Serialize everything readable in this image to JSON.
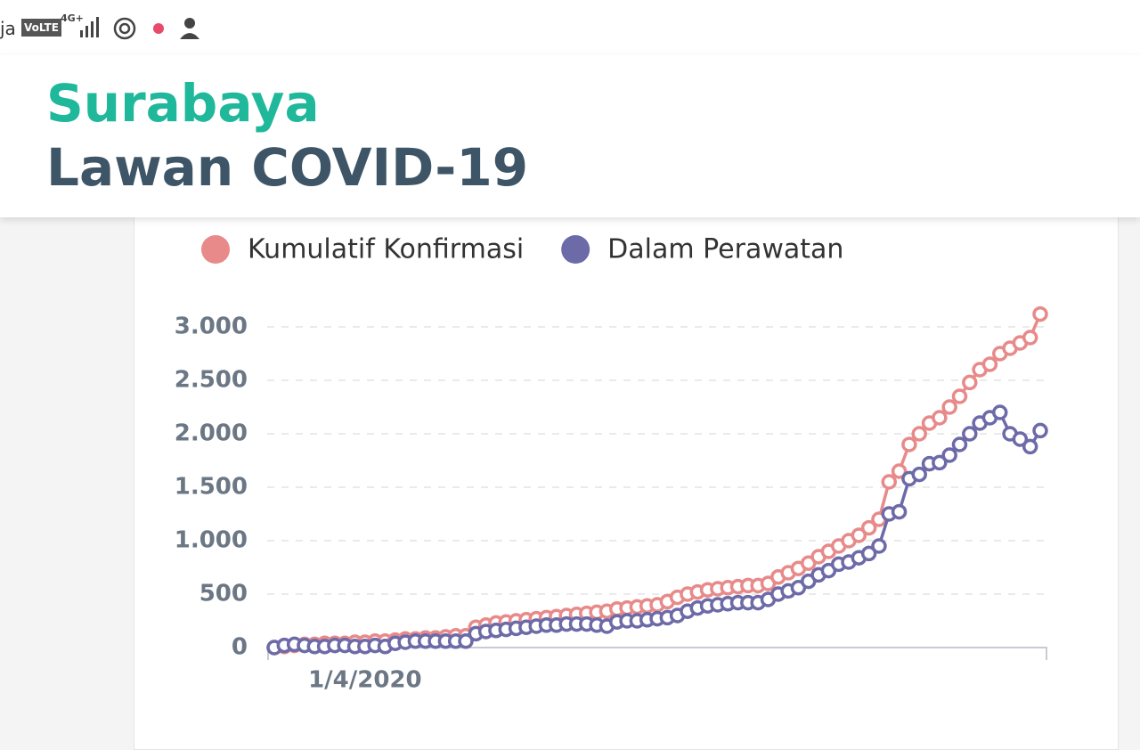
{
  "status_bar": {
    "left_text": "ja",
    "badge": "VoLTE",
    "network": "4G+"
  },
  "header": {
    "title_line1": "Surabaya",
    "title_line2": "Lawan COVID-19"
  },
  "chart_data": {
    "type": "line",
    "categories": [
      null,
      null,
      null,
      null,
      null,
      null,
      null,
      null,
      null,
      "1/4/2020",
      null,
      null,
      null,
      null,
      null,
      null,
      null,
      null,
      null,
      null,
      null,
      null,
      null,
      null,
      null,
      null,
      null,
      null,
      null,
      null,
      null,
      null,
      null,
      null,
      null,
      null,
      null,
      null,
      null,
      null,
      null,
      null,
      null,
      null,
      null,
      null,
      null,
      null,
      null,
      null,
      null,
      null,
      null,
      null,
      null,
      null,
      null,
      null,
      null,
      null,
      null,
      null,
      null,
      null,
      null,
      null,
      null,
      null,
      null,
      null,
      null,
      null,
      null,
      null,
      null,
      null,
      null
    ],
    "series": [
      {
        "name": "Kumulatif Konfirmasi",
        "color": "#e88a8a",
        "values": [
          0,
          10,
          20,
          30,
          30,
          40,
          40,
          40,
          50,
          50,
          60,
          60,
          70,
          80,
          80,
          90,
          90,
          100,
          110,
          110,
          190,
          210,
          230,
          240,
          250,
          260,
          270,
          280,
          290,
          300,
          310,
          320,
          330,
          340,
          360,
          370,
          380,
          390,
          400,
          430,
          470,
          500,
          520,
          540,
          550,
          560,
          570,
          580,
          580,
          600,
          660,
          700,
          740,
          790,
          850,
          900,
          950,
          1000,
          1050,
          1120,
          1200,
          1550,
          1650,
          1900,
          2000,
          2100,
          2150,
          2250,
          2350,
          2480,
          2600,
          2650,
          2750,
          2800,
          2850,
          2900,
          3120
        ]
      },
      {
        "name": "Dalam Perawatan",
        "color": "#6d6aa8",
        "values": [
          0,
          20,
          30,
          20,
          10,
          10,
          20,
          20,
          10,
          10,
          20,
          10,
          40,
          50,
          60,
          60,
          60,
          60,
          60,
          60,
          130,
          150,
          160,
          170,
          180,
          190,
          200,
          210,
          210,
          220,
          220,
          220,
          210,
          200,
          240,
          250,
          250,
          260,
          270,
          280,
          300,
          340,
          370,
          390,
          400,
          410,
          420,
          420,
          420,
          450,
          500,
          530,
          560,
          620,
          680,
          720,
          780,
          800,
          840,
          880,
          950,
          1250,
          1270,
          1580,
          1620,
          1720,
          1730,
          1800,
          1900,
          2000,
          2100,
          2150,
          2200,
          2000,
          1950,
          1880,
          2030
        ]
      }
    ],
    "ylim": [
      0,
      3250
    ],
    "yticks": [
      0,
      500,
      {
        "value": 1000,
        "label": "1.000"
      },
      {
        "value": 1500,
        "label": "1.500"
      },
      {
        "value": 2000,
        "label": "2.000"
      },
      {
        "value": 2500,
        "label": "2.500"
      },
      {
        "value": 3000,
        "label": "3.000"
      }
    ],
    "grid": true,
    "legend": "top"
  }
}
